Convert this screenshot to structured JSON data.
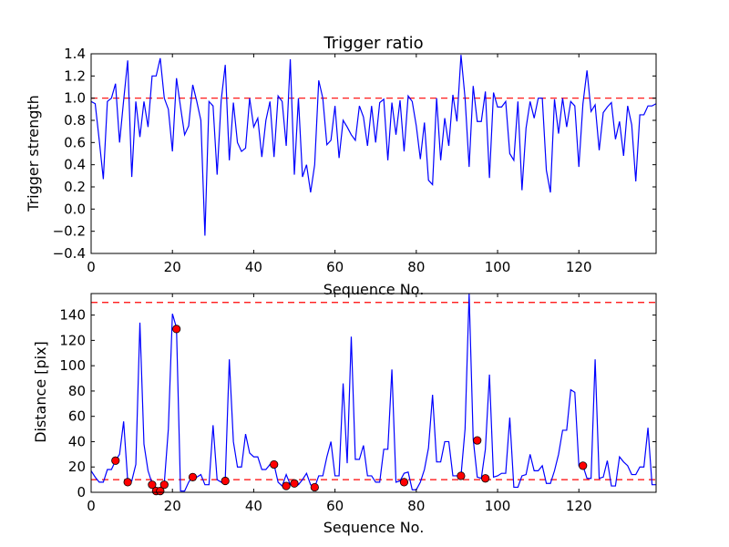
{
  "chart_data": [
    {
      "type": "line",
      "title": "Trigger ratio",
      "xlabel": "Sequence No.",
      "ylabel": "Trigger strength",
      "xlim": [
        0,
        139
      ],
      "ylim": [
        -0.4,
        1.4
      ],
      "xticks": [
        "0",
        "20",
        "40",
        "60",
        "80",
        "100",
        "120"
      ],
      "yticks": [
        "−0.4",
        "−0.2",
        "0.0",
        "0.2",
        "0.4",
        "0.6",
        "0.8",
        "1.0",
        "1.2",
        "1.4"
      ],
      "grid": false,
      "series": [
        {
          "color": "#0000ff",
          "x": [
            0,
            1,
            2,
            3,
            4,
            5,
            6,
            7,
            8,
            9,
            10,
            11,
            12,
            13,
            14,
            15,
            16,
            17,
            18,
            19,
            20,
            21,
            22,
            23,
            24,
            25,
            26,
            27,
            28,
            29,
            30,
            31,
            32,
            33,
            34,
            35,
            36,
            37,
            38,
            39,
            40,
            41,
            42,
            43,
            44,
            45,
            46,
            47,
            48,
            49,
            50,
            51,
            52,
            53,
            54,
            55,
            56,
            57,
            58,
            59,
            60,
            61,
            62,
            63,
            64,
            65,
            66,
            67,
            68,
            69,
            70,
            71,
            72,
            73,
            74,
            75,
            76,
            77,
            78,
            79,
            80,
            81,
            82,
            83,
            84,
            85,
            86,
            87,
            88,
            89,
            90,
            91,
            92,
            93,
            94,
            95,
            96,
            97,
            98,
            99,
            100,
            101,
            102,
            103,
            104,
            105,
            106,
            107,
            108,
            109,
            110,
            111,
            112,
            113,
            114,
            115,
            116,
            117,
            118,
            119,
            120,
            121,
            122,
            123,
            124,
            125,
            126,
            127,
            128,
            129,
            130,
            131,
            132,
            133,
            134,
            135,
            136,
            137,
            138,
            139
          ],
          "y": [
            0.97,
            0.95,
            0.62,
            0.27,
            0.97,
            1.0,
            1.13,
            0.6,
            0.98,
            1.34,
            0.29,
            0.97,
            0.65,
            0.97,
            0.74,
            1.2,
            1.2,
            1.36,
            1.0,
            0.9,
            0.52,
            1.18,
            0.92,
            0.67,
            0.75,
            1.12,
            0.97,
            0.8,
            -0.24,
            0.97,
            0.93,
            0.31,
            0.98,
            1.3,
            0.44,
            0.96,
            0.6,
            0.52,
            0.55,
            1.0,
            0.74,
            0.82,
            0.47,
            0.8,
            0.97,
            0.47,
            1.02,
            0.97,
            0.57,
            1.35,
            0.31,
            1.0,
            0.29,
            0.4,
            0.15,
            0.4,
            1.16,
            1.0,
            0.58,
            0.62,
            0.93,
            0.46,
            0.8,
            0.74,
            0.67,
            0.62,
            0.93,
            0.83,
            0.57,
            0.93,
            0.6,
            0.96,
            0.99,
            0.44,
            0.96,
            0.67,
            0.98,
            0.52,
            1.02,
            0.97,
            0.75,
            0.45,
            0.78,
            0.26,
            0.22,
            1.0,
            0.44,
            0.82,
            0.57,
            1.03,
            0.79,
            1.39,
            1.0,
            0.38,
            1.11,
            0.79,
            0.79,
            1.06,
            0.28,
            1.05,
            0.92,
            0.92,
            0.97,
            0.5,
            0.44,
            0.97,
            0.17,
            0.73,
            0.97,
            0.82,
            1.0,
            1.0,
            0.35,
            0.15,
            0.99,
            0.68,
            1.0,
            0.74,
            0.97,
            0.93,
            0.38,
            0.95,
            1.25,
            0.88,
            0.94,
            0.53,
            0.87,
            0.92,
            0.96,
            0.63,
            0.79,
            0.48,
            0.93,
            0.76,
            0.25,
            0.85,
            0.85,
            0.93,
            0.93,
            0.95
          ]
        }
      ],
      "reference_lines": [
        {
          "y": 1.0,
          "color": "#ff0000",
          "style": "dashed"
        }
      ]
    },
    {
      "type": "line",
      "title": "",
      "xlabel": "Sequence No.",
      "ylabel": "Distance [pix]",
      "xlim": [
        0,
        139
      ],
      "ylim": [
        0,
        157
      ],
      "xticks": [
        "0",
        "20",
        "40",
        "60",
        "80",
        "100",
        "120"
      ],
      "yticks": [
        "0",
        "20",
        "40",
        "60",
        "80",
        "100",
        "120",
        "140"
      ],
      "grid": false,
      "series": [
        {
          "color": "#0000ff",
          "x": [
            0,
            1,
            2,
            3,
            4,
            5,
            6,
            7,
            8,
            9,
            10,
            11,
            12,
            13,
            14,
            15,
            16,
            17,
            18,
            19,
            20,
            21,
            22,
            23,
            24,
            25,
            26,
            27,
            28,
            29,
            30,
            31,
            32,
            33,
            34,
            35,
            36,
            37,
            38,
            39,
            40,
            41,
            42,
            43,
            44,
            45,
            46,
            47,
            48,
            49,
            50,
            51,
            52,
            53,
            54,
            55,
            56,
            57,
            58,
            59,
            60,
            61,
            62,
            63,
            64,
            65,
            66,
            67,
            68,
            69,
            70,
            71,
            72,
            73,
            74,
            75,
            76,
            77,
            78,
            79,
            80,
            81,
            82,
            83,
            84,
            85,
            86,
            87,
            88,
            89,
            90,
            91,
            92,
            93,
            94,
            95,
            96,
            97,
            98,
            99,
            100,
            101,
            102,
            103,
            104,
            105,
            106,
            107,
            108,
            109,
            110,
            111,
            112,
            113,
            114,
            115,
            116,
            117,
            118,
            119,
            120,
            121,
            122,
            123,
            124,
            125,
            126,
            127,
            128,
            129,
            130,
            131,
            132,
            133,
            134,
            135,
            136,
            137,
            138,
            139
          ],
          "y": [
            17,
            12,
            8,
            8,
            18,
            18,
            25,
            30,
            56,
            9,
            9,
            22,
            134,
            38,
            17,
            7,
            2,
            2,
            7,
            50,
            141,
            130,
            1,
            1,
            8,
            13,
            12,
            14,
            6,
            6,
            53,
            10,
            8,
            10,
            105,
            40,
            20,
            20,
            46,
            31,
            28,
            28,
            18,
            18,
            22,
            22,
            8,
            5,
            14,
            6,
            8,
            6,
            10,
            15,
            6,
            4,
            13,
            13,
            28,
            40,
            13,
            13,
            86,
            23,
            123,
            26,
            26,
            37,
            13,
            13,
            8,
            8,
            34,
            34,
            97,
            8,
            9,
            15,
            16,
            2,
            2,
            8,
            18,
            35,
            77,
            24,
            24,
            40,
            40,
            13,
            13,
            13,
            50,
            157,
            42,
            12,
            11,
            34,
            93,
            12,
            13,
            15,
            15,
            59,
            4,
            4,
            13,
            14,
            30,
            17,
            17,
            21,
            7,
            7,
            17,
            30,
            49,
            49,
            81,
            79,
            21,
            21,
            11,
            11,
            105,
            11,
            12,
            25,
            5,
            5,
            28,
            24,
            21,
            14,
            14,
            20,
            20,
            51,
            6,
            6
          ],
          "markers_x": [
            6,
            9,
            15,
            16,
            17,
            18,
            21,
            25,
            33,
            45,
            48,
            50,
            55,
            77,
            91,
            95,
            97,
            121
          ],
          "markers_y": [
            25,
            8,
            6,
            1,
            1,
            6,
            129,
            12,
            9,
            22,
            5,
            7,
            4,
            8,
            13,
            41,
            11,
            21
          ],
          "marker_color": "#ff0000"
        }
      ],
      "reference_lines": [
        {
          "y": 150,
          "color": "#ff0000",
          "style": "dashed"
        },
        {
          "y": 10,
          "color": "#ff0000",
          "style": "dashed"
        }
      ]
    }
  ]
}
